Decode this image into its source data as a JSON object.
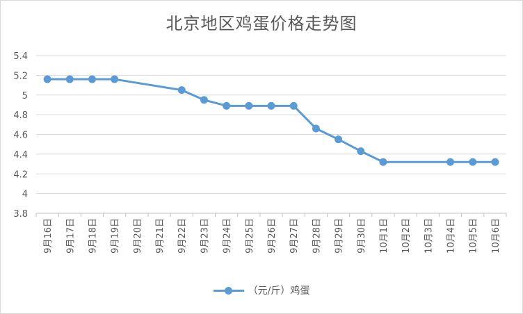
{
  "chart_data": {
    "type": "line",
    "title": "北京地区鸡蛋价格走势图",
    "categories": [
      "9月16日",
      "9月17日",
      "9月18日",
      "9月19日",
      "9月20日",
      "9月21日",
      "9月22日",
      "9月23日",
      "9月24日",
      "9月25日",
      "9月26日",
      "9月27日",
      "9月28日",
      "9月29日",
      "9月30日",
      "10月1日",
      "10月2日",
      "10月3日",
      "10月4日",
      "10月5日",
      "10月6日"
    ],
    "series": [
      {
        "name": "（元/斤）鸡蛋",
        "values": [
          5.16,
          5.16,
          5.16,
          5.16,
          null,
          null,
          5.05,
          4.95,
          4.89,
          4.89,
          4.89,
          4.89,
          4.66,
          4.55,
          4.43,
          4.32,
          null,
          null,
          4.32,
          4.32,
          4.32
        ],
        "color": "#5b9bd5",
        "markers": [
          true,
          true,
          true,
          true,
          false,
          false,
          true,
          true,
          true,
          true,
          true,
          true,
          true,
          true,
          true,
          true,
          false,
          false,
          true,
          true,
          true
        ]
      }
    ],
    "ylim": [
      3.8,
      5.4
    ],
    "yticks": [
      "3.8",
      "4",
      "4.2",
      "4.4",
      "4.6",
      "4.8",
      "5",
      "5.2",
      "5.4"
    ],
    "xlabel": "",
    "ylabel": "",
    "grid": true,
    "legend": "bottom"
  }
}
